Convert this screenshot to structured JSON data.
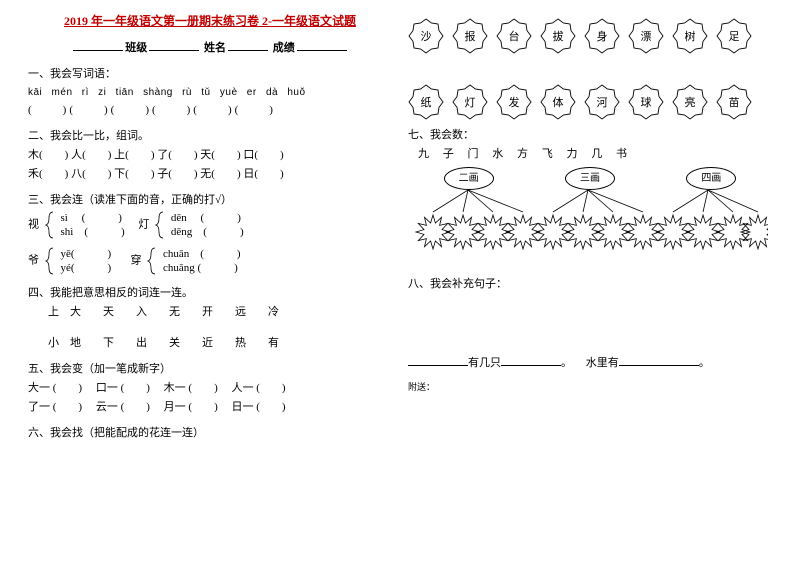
{
  "title": "2019 年一年级语文第一册期末练习卷 2-一年级语文试题",
  "hdr": {
    "l1": "班级",
    "l2": "姓名",
    "l3": "成绩"
  },
  "q1": {
    "t": "一、我会写词语：",
    "py": "kāi  mén   rì   zi   tiān  shàng   rù   tǔ   yuè  er   dà   huǒ"
  },
  "q2": {
    "t": "二、我会比一比，组词。",
    "r1": "木(　　) 人(　　) 上(　　) 了(　　) 天(　　) 口(　　)",
    "r2": "禾(　　) 八(　　) 下(　　) 子(　　) 无(　　) 日(　　)"
  },
  "q3": {
    "t": "三、我会连（读准下面的音，正确的打√）",
    "a1": "视",
    "a2": "灯",
    "a3": "爷",
    "a4": "穿",
    "p1a": "sì　 (　　　)",
    "p1b": "shì　(　　　)",
    "p2a": "dēn　 (　　　)",
    "p2b": "dēng　(　　　)",
    "p3a": "yē(　　　)",
    "p3b": "yé(　　　)",
    "p4a": "chuān　(　　　)",
    "p4b": "chuāng (　　　)"
  },
  "q4": {
    "t": "四、我能把意思相反的词连一连。",
    "r1": "上　大　　天　　入　　无　　开　　远　　冷",
    "r2": "小　地　　下　　出　　关　　近　　热　　有"
  },
  "q5": {
    "t": "五、我会变（加一笔成新字）",
    "r1": "大一 (　　)　 口一 (　　)　 木一 (　　)　 人一 (　　)",
    "r2": "了一 (　　)　 云一 (　　)　 月一 (　　)　 日一 (　　)"
  },
  "q6": {
    "t": "六、我会找（把能配成的花连一连）",
    "row1": [
      "沙",
      "报",
      "台",
      "拔",
      "身",
      "漂",
      "树",
      "足"
    ],
    "row2": [
      "纸",
      "灯",
      "发",
      "体",
      "河",
      "球",
      "亮",
      "苗"
    ]
  },
  "q7": {
    "t": "七、我会数：",
    "chars": "九 子 门 水 方 飞 力 几 书",
    "ov": [
      "二画",
      "三画",
      "四画"
    ]
  },
  "q8": {
    "t": "八、我会补充句子：",
    "s1a": "有几只",
    "s1b": "。",
    "s2a": "水里有",
    "s2b": "。"
  },
  "app": "附送："
}
